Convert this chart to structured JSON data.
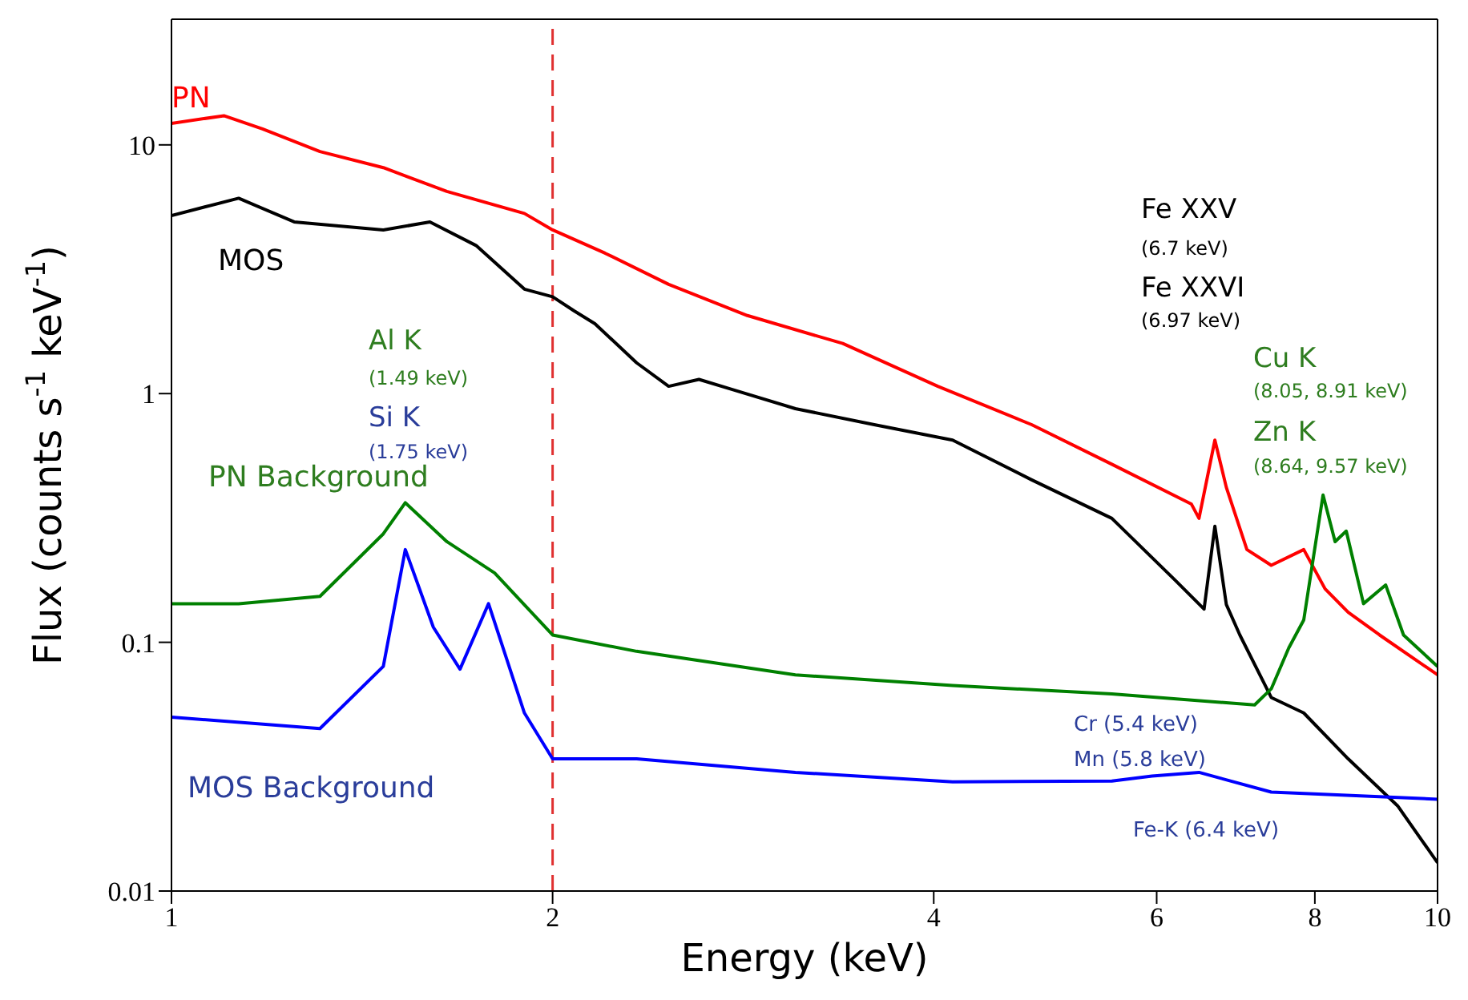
{
  "chart_data": {
    "type": "line",
    "xlabel": "Energy (keV)",
    "ylabel": "Flux (counts s$^{-1}$ keV$^{-1}$)",
    "log": "xy",
    "xlim": [
      1,
      10
    ],
    "xticks": [
      1,
      2,
      4,
      6,
      8,
      10
    ],
    "ylim": [
      0.01,
      32
    ],
    "yticks": [
      0.01,
      0.1,
      1,
      10
    ],
    "marker": "none",
    "line_style": "solid",
    "series": [
      {
        "name": "PN",
        "color": "#ff0000",
        "x": [
          1,
          1.1,
          1.18,
          1.31,
          1.47,
          1.65,
          1.9,
          2.0,
          2.2,
          2.47,
          2.85,
          3.39,
          4.03,
          4.78,
          5.53,
          6.39,
          6.48,
          6.67,
          6.81,
          7.07,
          7.39,
          7.84,
          8.15,
          8.5,
          9.0,
          10
        ],
        "values": [
          12.2,
          13.1,
          11.6,
          9.4,
          8.1,
          6.5,
          5.3,
          4.55,
          3.67,
          2.75,
          2.06,
          1.59,
          1.07,
          0.75,
          0.52,
          0.36,
          0.315,
          0.65,
          0.42,
          0.236,
          0.204,
          0.236,
          0.164,
          0.132,
          0.107,
          0.074
        ]
      },
      {
        "name": "MOS",
        "color": "#000000",
        "x": [
          1,
          1.13,
          1.25,
          1.47,
          1.6,
          1.74,
          1.9,
          2.0,
          2.08,
          2.16,
          2.33,
          2.47,
          2.61,
          2.77,
          3.11,
          3.59,
          4.14,
          4.78,
          5.53,
          6.21,
          6.54,
          6.67,
          6.81,
          6.98,
          7.39,
          7.84,
          8.5,
          9.3,
          10
        ],
        "values": [
          5.2,
          6.1,
          4.9,
          4.55,
          4.9,
          3.94,
          2.63,
          2.45,
          2.15,
          1.91,
          1.33,
          1.07,
          1.14,
          1.04,
          0.87,
          0.75,
          0.65,
          0.45,
          0.315,
          0.177,
          0.136,
          0.293,
          0.142,
          0.107,
          0.06,
          0.052,
          0.034,
          0.022,
          0.013
        ]
      },
      {
        "name": "PN Background",
        "color": "#008000",
        "x": [
          1,
          1.13,
          1.31,
          1.47,
          1.53,
          1.65,
          1.8,
          2.0,
          2.33,
          3.11,
          4.14,
          5.53,
          7.17,
          7.39,
          7.63,
          7.84,
          8.12,
          8.3,
          8.47,
          8.74,
          9.1,
          9.4,
          10
        ],
        "values": [
          0.143,
          0.143,
          0.153,
          0.273,
          0.364,
          0.254,
          0.19,
          0.107,
          0.092,
          0.074,
          0.067,
          0.062,
          0.056,
          0.065,
          0.095,
          0.123,
          0.391,
          0.254,
          0.28,
          0.143,
          0.17,
          0.107,
          0.08
        ]
      },
      {
        "name": "MOS Background",
        "color": "#0000ff",
        "x": [
          1,
          1.31,
          1.47,
          1.53,
          1.61,
          1.69,
          1.78,
          1.9,
          2.0,
          2.33,
          3.11,
          4.14,
          5.53,
          5.95,
          6.48,
          7.39,
          10
        ],
        "values": [
          0.05,
          0.045,
          0.08,
          0.236,
          0.115,
          0.078,
          0.143,
          0.052,
          0.034,
          0.034,
          0.03,
          0.0275,
          0.0277,
          0.029,
          0.03,
          0.025,
          0.0234
        ]
      }
    ],
    "ref_lines": [
      {
        "axis": "x",
        "value": 2,
        "color": "#e03030",
        "line_style": "dashed"
      }
    ],
    "annotations": [
      "Fe XXV",
      "(6.7 keV)",
      "Fe XXVI",
      "(6.97 keV)",
      "Cu K",
      "(8.05, 8.91 keV)",
      "Zn K",
      "(8.64, 9.57 keV)",
      "Al K",
      "(1.49 keV)",
      "Si K",
      "(1.75 keV)",
      "Cr (5.4 keV)",
      "Mn (5.8 keV)",
      "Fe-K (6.4 keV)"
    ]
  }
}
